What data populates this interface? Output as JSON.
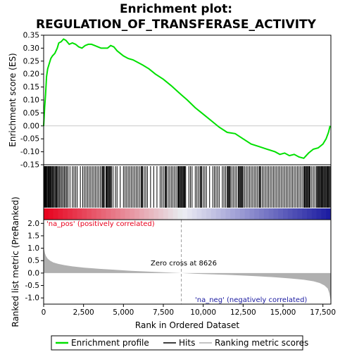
{
  "title_line1": "Enrichment plot:",
  "title_line2": "REGULATION_OF_TRANSFERASE_ACTIVITY",
  "annotations": {
    "pos_label": "'na_pos' (positively correlated)",
    "neg_label": "'na_neg' (negatively correlated)",
    "zero_cross": "Zero cross at 8626"
  },
  "legend": {
    "enrichment": "Enrichment profile",
    "hits": "Hits",
    "ranking": "Ranking metric scores"
  },
  "colors": {
    "enrichment_line": "#00e000",
    "hits": "#000000",
    "metric_fill": "#b0b0b0",
    "pos_red": "#e8001c",
    "neg_blue": "#1a1aa0"
  },
  "chart_data": [
    {
      "type": "line",
      "panel": "enrichment",
      "ylabel": "Enrichment score (ES)",
      "xlim": [
        0,
        18000
      ],
      "ylim": [
        -0.15,
        0.35
      ],
      "y_ticks": [
        "0.35",
        "0.30",
        "0.25",
        "0.20",
        "0.15",
        "0.10",
        "0.05",
        "0.00",
        "-0.05",
        "-0.10",
        "-0.15"
      ],
      "y_tick_values": [
        0.35,
        0.3,
        0.25,
        0.2,
        0.15,
        0.1,
        0.05,
        0.0,
        -0.05,
        -0.1,
        -0.15
      ],
      "x": [
        0,
        60,
        120,
        180,
        250,
        350,
        450,
        550,
        700,
        850,
        950,
        1100,
        1250,
        1400,
        1600,
        1800,
        2000,
        2200,
        2400,
        2600,
        2800,
        3000,
        3200,
        3400,
        3600,
        3800,
        4000,
        4200,
        4400,
        4600,
        4800,
        5000,
        5300,
        5600,
        5900,
        6200,
        6600,
        7000,
        7500,
        8000,
        8626,
        9000,
        9500,
        10000,
        10500,
        11000,
        11500,
        12000,
        12500,
        13000,
        13500,
        14000,
        14500,
        14800,
        15100,
        15400,
        15700,
        16000,
        16300,
        16600,
        16900,
        17200,
        17500,
        17700,
        17850,
        17950
      ],
      "y": [
        0.0,
        0.07,
        0.12,
        0.19,
        0.22,
        0.24,
        0.26,
        0.27,
        0.28,
        0.3,
        0.32,
        0.325,
        0.335,
        0.33,
        0.315,
        0.32,
        0.315,
        0.305,
        0.3,
        0.31,
        0.315,
        0.315,
        0.31,
        0.305,
        0.3,
        0.3,
        0.3,
        0.31,
        0.305,
        0.29,
        0.28,
        0.27,
        0.26,
        0.255,
        0.245,
        0.235,
        0.22,
        0.2,
        0.18,
        0.155,
        0.12,
        0.1,
        0.07,
        0.045,
        0.02,
        -0.005,
        -0.025,
        -0.03,
        -0.05,
        -0.07,
        -0.08,
        -0.09,
        -0.1,
        -0.11,
        -0.105,
        -0.115,
        -0.11,
        -0.12,
        -0.125,
        -0.105,
        -0.09,
        -0.085,
        -0.07,
        -0.05,
        -0.025,
        0.0
      ]
    },
    {
      "type": "line",
      "panel": "hits",
      "description_none": "",
      "hits": [
        20,
        60,
        90,
        130,
        170,
        210,
        260,
        300,
        330,
        380,
        420,
        470,
        520,
        560,
        610,
        660,
        720,
        780,
        820,
        870,
        940,
        1000,
        1080,
        1150,
        1230,
        1300,
        1380,
        1450,
        1530,
        1650,
        1800,
        1900,
        2000,
        2100,
        2300,
        2450,
        2550,
        2650,
        2750,
        2850,
        2950,
        3050,
        3150,
        3250,
        3350,
        3450,
        3550,
        3650,
        3700,
        3750,
        3800,
        3900,
        3950,
        4000,
        4050,
        4100,
        4150,
        4200,
        4250,
        4350,
        4500,
        4600,
        4800,
        5000,
        5100,
        5200,
        5300,
        5400,
        5500,
        5600,
        5700,
        5800,
        5900,
        6000,
        6100,
        6150,
        6200,
        6300,
        6400,
        6500,
        6700,
        6900,
        7100,
        7300,
        7400,
        7500,
        7600,
        7650,
        7700,
        7800,
        7900,
        8000,
        8100,
        8200,
        8300,
        8400,
        8450,
        8500,
        8550,
        8600,
        8650,
        8700,
        8750,
        8800,
        8850,
        8900,
        9100,
        9200,
        9300,
        9500,
        9600,
        9700,
        9800,
        9850,
        9900,
        10000,
        10100,
        10200,
        10400,
        10600,
        10700,
        10800,
        10900,
        11000,
        11200,
        11300,
        11400,
        11500,
        11550,
        11600,
        11650,
        11700,
        11800,
        11900,
        12000,
        12100,
        12200,
        12250,
        12300,
        12350,
        12400,
        12450,
        12500,
        12600,
        12700,
        12800,
        12900,
        13000,
        13100,
        13200,
        13300,
        13400,
        13500,
        13550,
        13600,
        13700,
        13800,
        13900,
        14000,
        14100,
        14200,
        14300,
        14400,
        14500,
        14600,
        14700,
        14800,
        14900,
        15000,
        15100,
        15200,
        15300,
        15400,
        15500,
        15600,
        15700,
        15800,
        15900,
        16000,
        16100,
        16200,
        16300,
        16350,
        16400,
        16450,
        16500,
        16550,
        16600,
        16650,
        16700,
        16800,
        16900,
        17000,
        17100,
        17150,
        17200,
        17250,
        17300,
        17350,
        17400,
        17450,
        17500,
        17550,
        17600,
        17650,
        17700,
        17750,
        17800,
        17850,
        17900,
        17950
      ]
    },
    {
      "type": "area",
      "panel": "ranked_metric",
      "ylabel": "Ranked list metric (PreRanked)",
      "xlabel": "Rank in Ordered Dataset",
      "xlim": [
        0,
        18000
      ],
      "ylim": [
        -1.25,
        2.15
      ],
      "x_ticks": [
        "0",
        "2,500",
        "5,000",
        "7,500",
        "10,000",
        "12,500",
        "15,000",
        "17,500"
      ],
      "x_tick_values": [
        0,
        2500,
        5000,
        7500,
        10000,
        12500,
        15000,
        17500
      ],
      "y_ticks": [
        "2.0",
        "1.5",
        "1.0",
        "0.5",
        "0.0",
        "-0.5",
        "-1.0"
      ],
      "y_tick_values": [
        2.0,
        1.5,
        1.0,
        0.5,
        0.0,
        -0.5,
        -1.0
      ],
      "x": [
        0,
        30,
        80,
        150,
        250,
        400,
        600,
        900,
        1300,
        1800,
        2500,
        3500,
        4500,
        5500,
        6500,
        7500,
        8626,
        9500,
        10500,
        11500,
        12500,
        13500,
        14500,
        15500,
        16300,
        16900,
        17300,
        17600,
        17800,
        17900,
        17960,
        18000
      ],
      "y": [
        1.1,
        0.95,
        0.8,
        0.68,
        0.58,
        0.5,
        0.43,
        0.37,
        0.32,
        0.27,
        0.22,
        0.17,
        0.13,
        0.09,
        0.06,
        0.03,
        0.0,
        -0.03,
        -0.05,
        -0.07,
        -0.1,
        -0.13,
        -0.17,
        -0.22,
        -0.27,
        -0.33,
        -0.4,
        -0.5,
        -0.62,
        -0.8,
        -1.0,
        -1.2
      ]
    }
  ]
}
